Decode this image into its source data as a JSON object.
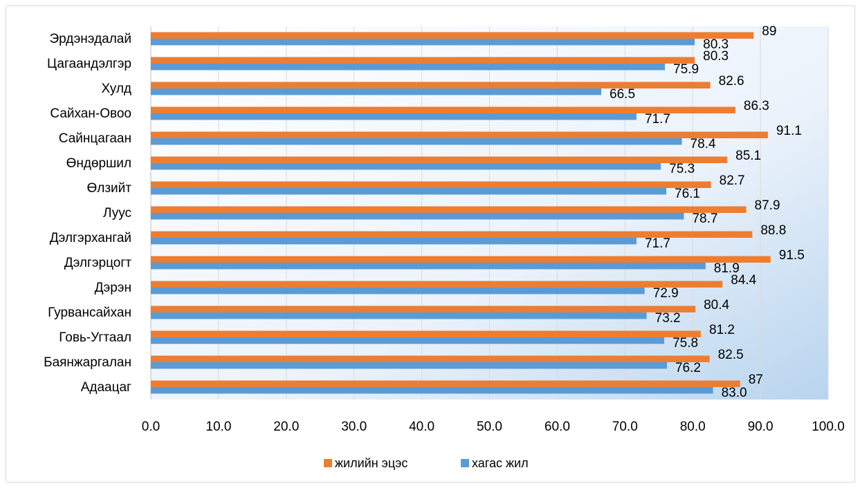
{
  "chart_data": {
    "type": "bar",
    "orientation": "horizontal",
    "categories": [
      "Эрдэнэдалай",
      "Цагаандэлгэр",
      "Хулд",
      "Сайхан-Овоо",
      "Сайнцагаан",
      "Өндөршил",
      "Өлзийт",
      "Луус",
      "Дэлгэрхангай",
      "Дэлгэрцогт",
      "Дэрэн",
      "Гурвансайхан",
      "Говь-Угтаал",
      "Баянжаргалан",
      "Адаацаг"
    ],
    "series": [
      {
        "name": "жилийн эцэс",
        "color": "#ED7D31",
        "values": [
          89,
          80.3,
          82.6,
          86.3,
          91.1,
          85.1,
          82.7,
          87.9,
          88.8,
          91.5,
          84.4,
          80.4,
          81.2,
          82.5,
          87
        ],
        "labels": [
          "89",
          "80.3",
          "82.6",
          "86.3",
          "91.1",
          "85.1",
          "82.7",
          "87.9",
          "88.8",
          "91.5",
          "84.4",
          "80.4",
          "81.2",
          "82.5",
          "87"
        ]
      },
      {
        "name": "хагас жил",
        "color": "#5B9BD5",
        "values": [
          80.3,
          75.9,
          66.5,
          71.7,
          78.4,
          75.3,
          76.1,
          78.7,
          71.7,
          81.9,
          72.9,
          73.2,
          75.8,
          76.2,
          83.0
        ],
        "labels": [
          "80.3",
          "75.9",
          "66.5",
          "71.7",
          "78.4",
          "75.3",
          "76.1",
          "78.7",
          "71.7",
          "81.9",
          "72.9",
          "73.2",
          "75.8",
          "76.2",
          "83.0"
        ]
      }
    ],
    "xlim": [
      0,
      100
    ],
    "ticks": [
      "0.0",
      "10.0",
      "20.0",
      "30.0",
      "40.0",
      "50.0",
      "60.0",
      "70.0",
      "80.0",
      "90.0",
      "100.0"
    ],
    "grid": true,
    "legend": "bottom",
    "title": "",
    "xlabel": "",
    "ylabel": ""
  }
}
